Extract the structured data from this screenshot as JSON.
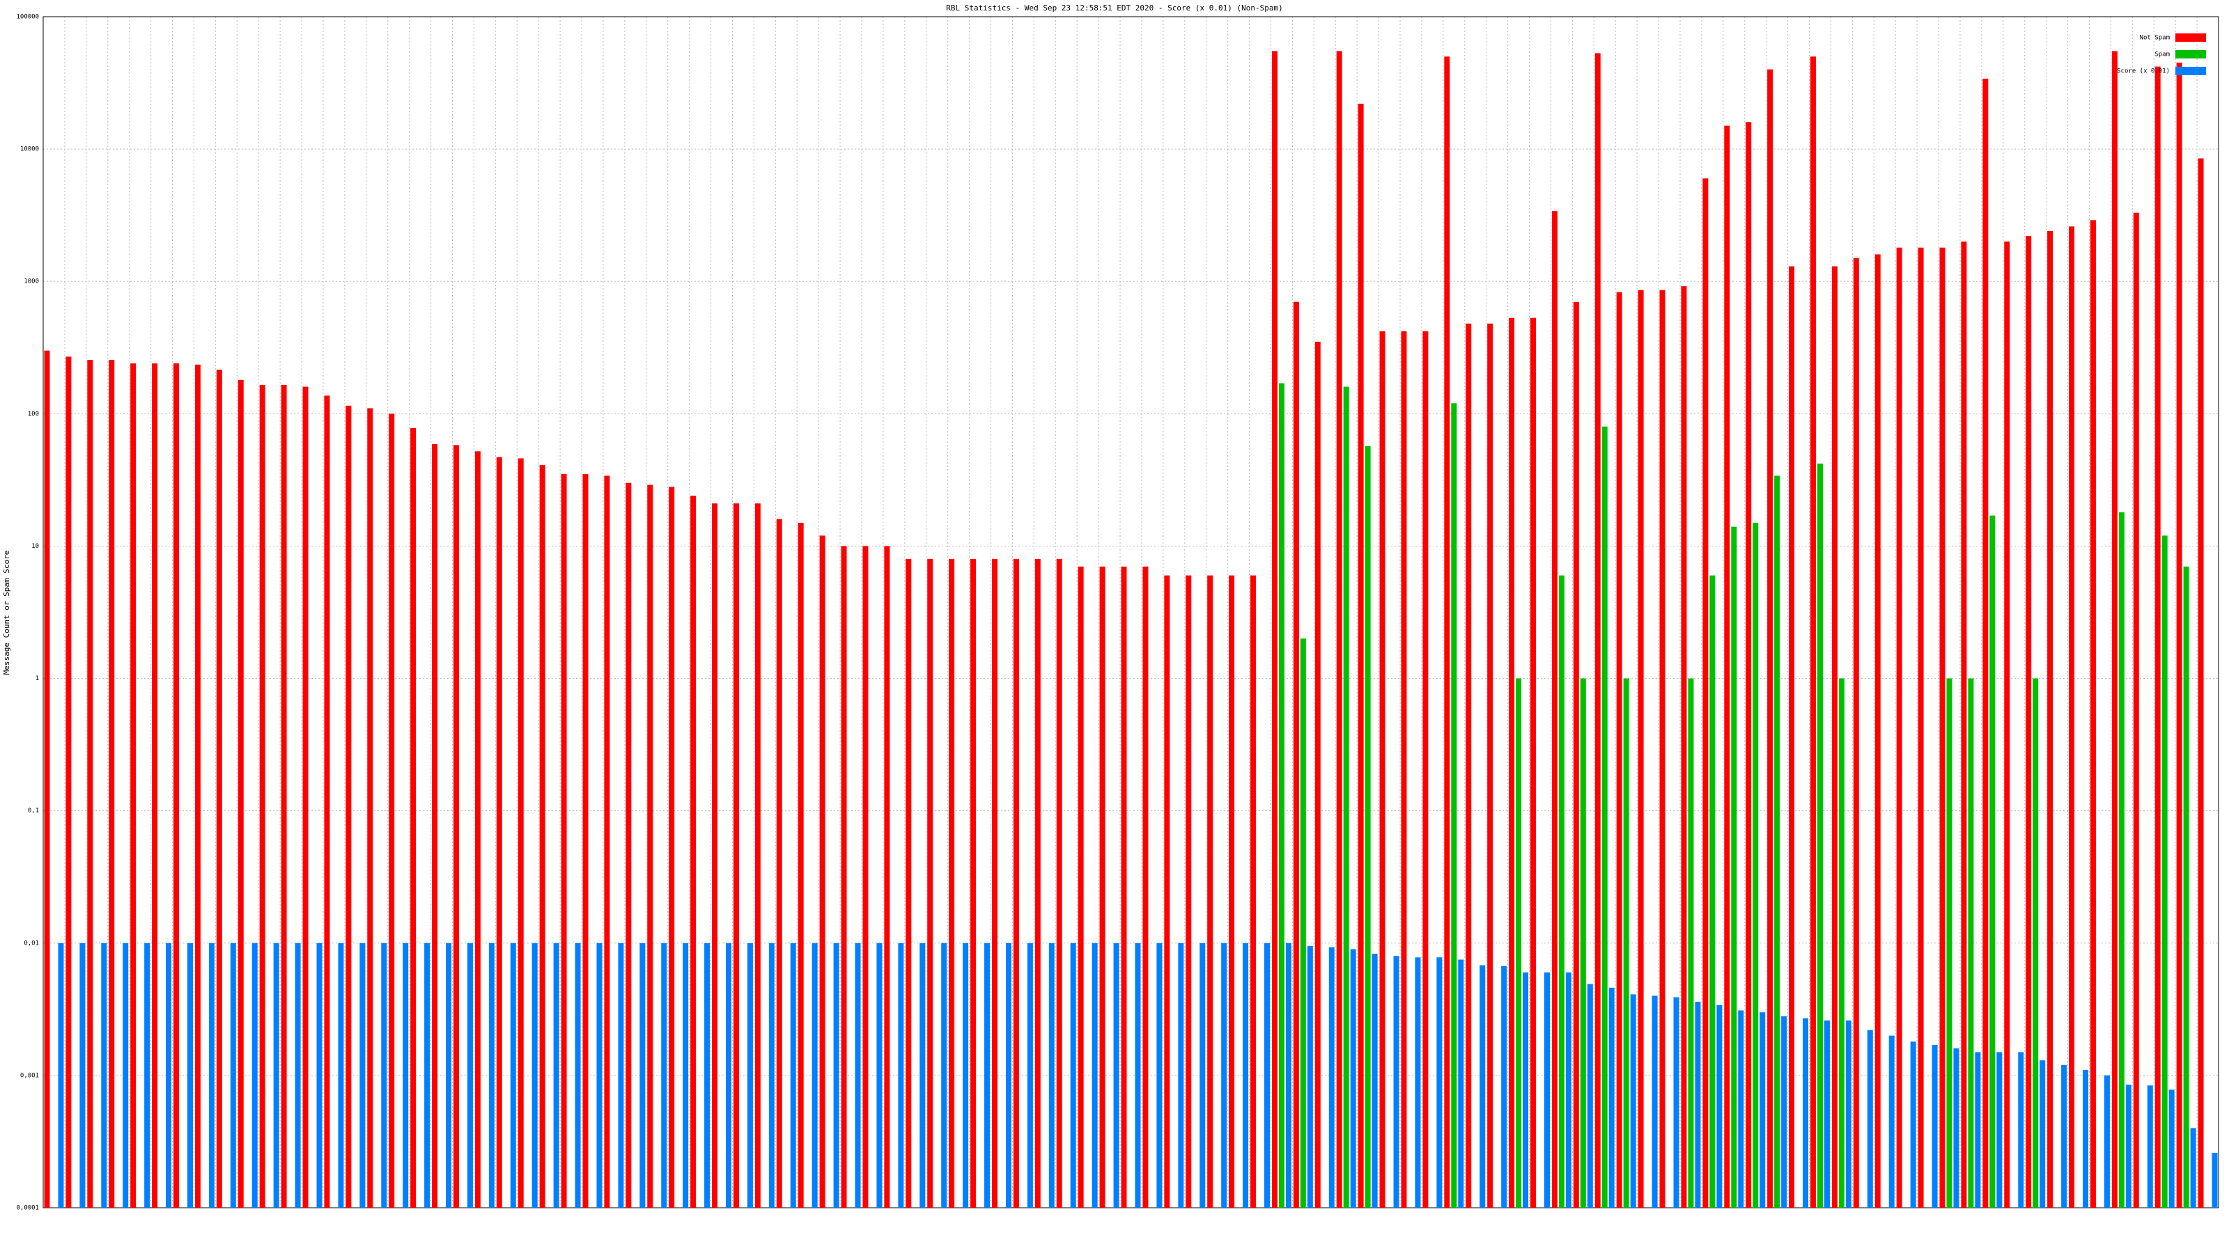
{
  "chart_data": {
    "type": "bar",
    "title": "RBL Statistics - Wed Sep 23 12:58:51 EDT 2020 - Score (x 0.01) (Non-Spam)",
    "y_label": "Message Count or Spam Score",
    "log_scale": true,
    "grid": true,
    "legend": "top-right",
    "ylim": [
      0.0001,
      100000
    ],
    "yticks": [
      {
        "value": 0.0001,
        "label": "0,0001"
      },
      {
        "value": 0.001,
        "label": "0,001"
      },
      {
        "value": 0.01,
        "label": "0,01"
      },
      {
        "value": 0.1,
        "label": "0,1"
      },
      1,
      10,
      100,
      1000,
      10000,
      100000
    ],
    "categories": [
      null,
      null,
      null,
      null,
      null,
      null,
      null,
      null,
      null,
      null,
      null,
      null,
      null,
      null,
      null,
      null,
      null,
      null,
      null,
      null,
      null,
      null,
      null,
      null,
      null,
      null,
      null,
      null,
      null,
      null,
      null,
      null,
      null,
      null,
      null,
      null,
      null,
      null,
      null,
      null,
      null,
      null,
      null,
      null,
      null,
      null,
      null,
      null,
      null,
      null,
      null,
      null,
      null,
      null,
      null,
      null,
      null,
      null,
      null,
      null,
      null,
      null,
      null,
      null,
      null,
      null,
      null,
      null,
      null,
      null,
      null,
      null,
      null,
      null,
      null,
      null,
      null,
      null,
      null,
      null,
      null,
      null,
      null,
      null,
      null,
      null,
      null,
      null,
      null,
      null,
      null,
      null,
      null,
      null,
      null,
      null,
      null,
      null,
      null,
      null,
      null
    ],
    "series": [
      {
        "name": "Not Spam",
        "color": "#ff0000",
        "values": [
          300,
          270,
          255,
          255,
          240,
          240,
          240,
          235,
          215,
          180,
          165,
          165,
          160,
          137,
          115,
          110,
          100,
          78,
          59,
          58,
          52,
          47,
          46,
          41,
          35,
          35,
          34,
          30,
          29,
          28,
          24,
          21,
          21,
          21,
          16,
          15,
          12,
          10,
          10,
          10,
          8,
          8,
          8,
          8,
          8,
          8,
          8,
          8,
          7,
          7,
          7,
          7,
          6,
          6,
          6,
          6,
          6,
          55000,
          700,
          350,
          55000,
          22000,
          420,
          420,
          420,
          50000,
          480,
          480,
          530,
          530,
          3400,
          700,
          53000,
          830,
          860,
          860,
          920,
          6000,
          15000,
          16000,
          40000,
          1300,
          50000,
          1300,
          1500,
          1600,
          1800,
          1800,
          1800,
          2000,
          34000,
          2000,
          2200,
          2400,
          2600,
          2900,
          55000,
          3300,
          42000,
          45000,
          8500
        ]
      },
      {
        "name": "Spam",
        "color": "#00c000",
        "values": [
          null,
          null,
          null,
          null,
          null,
          null,
          null,
          null,
          null,
          null,
          null,
          null,
          null,
          null,
          null,
          null,
          null,
          null,
          null,
          null,
          null,
          null,
          null,
          null,
          null,
          null,
          null,
          null,
          null,
          null,
          null,
          null,
          null,
          null,
          null,
          null,
          null,
          null,
          null,
          null,
          null,
          null,
          null,
          null,
          null,
          null,
          null,
          null,
          null,
          null,
          null,
          null,
          null,
          null,
          null,
          null,
          null,
          170,
          2,
          null,
          160,
          57,
          null,
          null,
          null,
          120,
          null,
          null,
          1,
          null,
          6,
          1,
          80,
          1,
          null,
          null,
          1,
          6,
          14,
          15,
          34,
          null,
          42,
          1,
          null,
          null,
          null,
          null,
          1,
          1,
          17,
          null,
          1,
          null,
          null,
          null,
          18,
          null,
          12,
          7,
          null
        ]
      },
      {
        "name": "Score (x 0.01)",
        "color": "#0080ff",
        "values": [
          0.01,
          0.01,
          0.01,
          0.01,
          0.01,
          0.01,
          0.01,
          0.01,
          0.01,
          0.01,
          0.01,
          0.01,
          0.01,
          0.01,
          0.01,
          0.01,
          0.01,
          0.01,
          0.01,
          0.01,
          0.01,
          0.01,
          0.01,
          0.01,
          0.01,
          0.01,
          0.01,
          0.01,
          0.01,
          0.01,
          0.01,
          0.01,
          0.01,
          0.01,
          0.01,
          0.01,
          0.01,
          0.01,
          0.01,
          0.01,
          0.01,
          0.01,
          0.01,
          0.01,
          0.01,
          0.01,
          0.01,
          0.01,
          0.01,
          0.01,
          0.01,
          0.01,
          0.01,
          0.01,
          0.01,
          0.01,
          0.01,
          0.01,
          0.0095,
          0.0093,
          0.009,
          0.0083,
          0.008,
          0.0078,
          0.0078,
          0.0075,
          0.0068,
          0.0067,
          0.006,
          0.006,
          0.006,
          0.0049,
          0.0046,
          0.0041,
          0.004,
          0.0039,
          0.0036,
          0.0034,
          0.0031,
          0.003,
          0.0028,
          0.0027,
          0.0026,
          0.0026,
          0.0022,
          0.002,
          0.0018,
          0.0017,
          0.0016,
          0.0015,
          0.0015,
          0.0015,
          0.0013,
          0.0012,
          0.0011,
          0.001,
          0.00085,
          0.00084,
          0.00078,
          0.0004,
          0.00026
        ]
      }
    ]
  }
}
